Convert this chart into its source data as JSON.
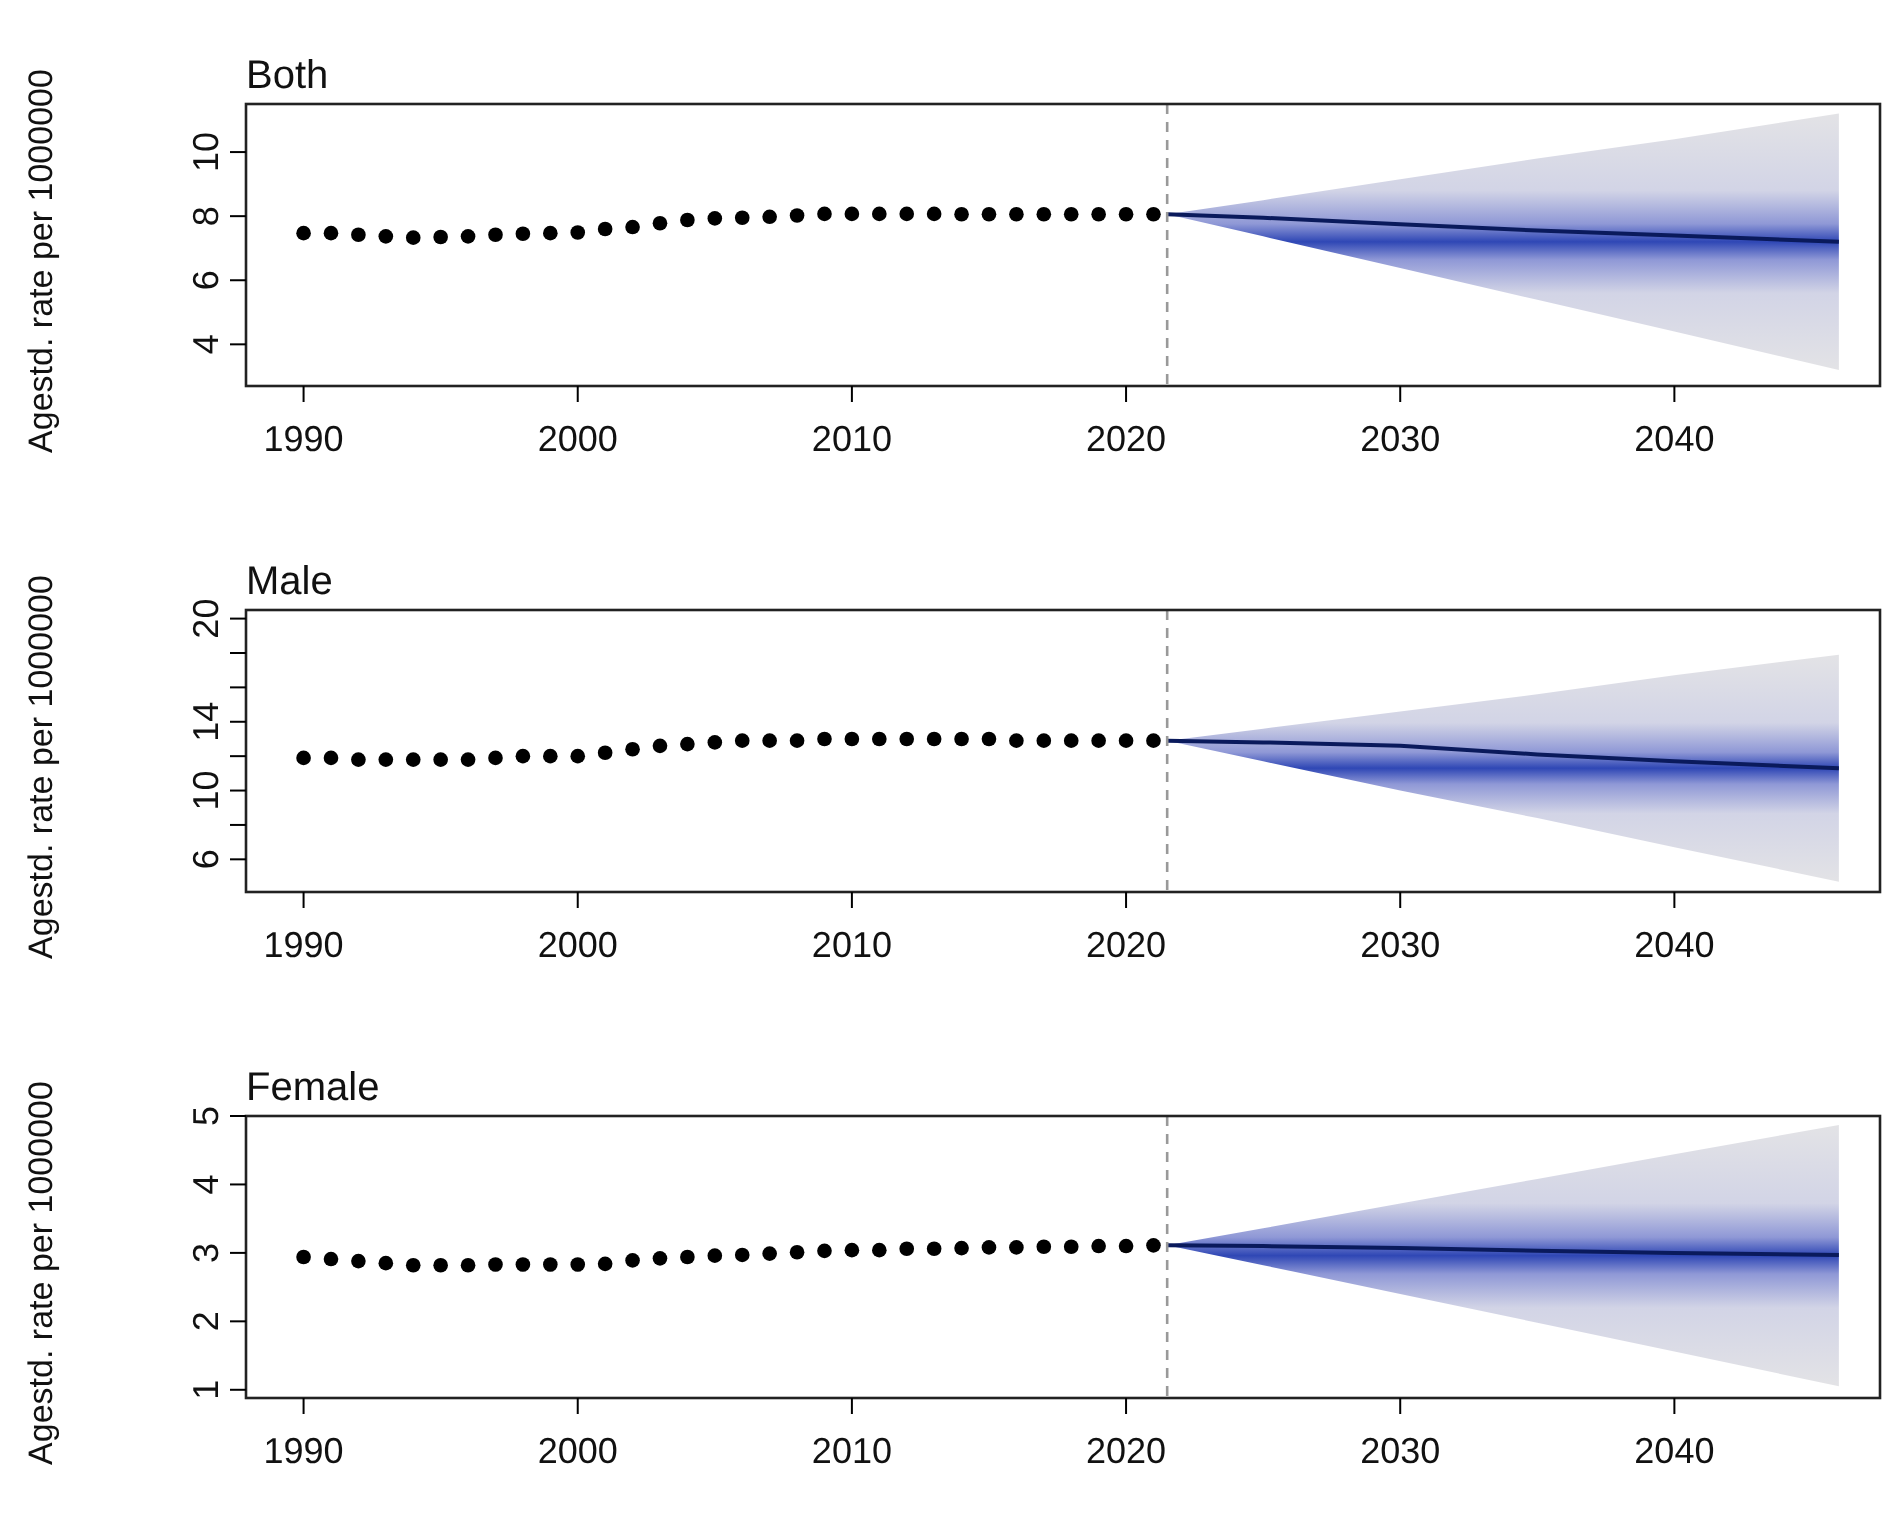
{
  "chart_data": [
    {
      "type": "line",
      "title": "Both",
      "ylabel": "Agestd. rate per 1000000",
      "xlim": [
        1987.9,
        2047.5
      ],
      "xticks": [
        1990,
        2000,
        2010,
        2020,
        2030,
        2040
      ],
      "ylim": [
        2.7,
        11.5
      ],
      "yticks": [
        4,
        6,
        8,
        10
      ],
      "grid": false,
      "ref_lines": [
        {
          "axis": "x",
          "value": 2021.5,
          "color": "#999999",
          "line_style": "dashed"
        }
      ],
      "series": [
        {
          "type": "scatter",
          "marker": "circle",
          "color": "#000000",
          "x": [
            1990,
            1991,
            1992,
            1993,
            1994,
            1995,
            1996,
            1997,
            1998,
            1999,
            2000,
            2001,
            2002,
            2003,
            2004,
            2005,
            2006,
            2007,
            2008,
            2009,
            2010,
            2011,
            2012,
            2013,
            2014,
            2015,
            2016,
            2017,
            2018,
            2019,
            2020,
            2021
          ],
          "values": [
            7.47,
            7.47,
            7.42,
            7.37,
            7.33,
            7.35,
            7.37,
            7.42,
            7.45,
            7.47,
            7.49,
            7.6,
            7.66,
            7.78,
            7.88,
            7.93,
            7.95,
            7.98,
            8.02,
            8.07,
            8.07,
            8.07,
            8.07,
            8.07,
            8.06,
            8.06,
            8.06,
            8.06,
            8.06,
            8.06,
            8.06,
            8.06
          ]
        },
        {
          "type": "line",
          "color": "#0a1a5c",
          "x": [
            2021.5,
            2025,
            2030,
            2035,
            2040,
            2046
          ],
          "values": [
            8.06,
            7.95,
            7.75,
            7.55,
            7.4,
            7.2
          ],
          "lower": [
            8.06,
            7.37,
            6.38,
            5.39,
            4.4,
            3.2
          ],
          "upper": [
            8.06,
            8.5,
            9.15,
            9.8,
            10.4,
            11.2
          ]
        }
      ]
    },
    {
      "type": "line",
      "title": "Male",
      "ylabel": "Agestd. rate per 1000000",
      "xlim": [
        1987.9,
        2047.5
      ],
      "xticks": [
        1990,
        2000,
        2010,
        2020,
        2030,
        2040
      ],
      "ylim": [
        4.1,
        20.5
      ],
      "yticks": [
        6,
        {
          "value": 8,
          "label": null
        },
        10,
        {
          "value": 12,
          "label": null
        },
        14,
        {
          "value": 16,
          "label": null
        },
        {
          "value": 18,
          "label": null
        },
        20
      ],
      "grid": false,
      "ref_lines": [
        {
          "axis": "x",
          "value": 2021.5,
          "color": "#999999",
          "line_style": "dashed"
        }
      ],
      "series": [
        {
          "type": "scatter",
          "marker": "circle",
          "color": "#000000",
          "x": [
            1990,
            1991,
            1992,
            1993,
            1994,
            1995,
            1996,
            1997,
            1998,
            1999,
            2000,
            2001,
            2002,
            2003,
            2004,
            2005,
            2006,
            2007,
            2008,
            2009,
            2010,
            2011,
            2012,
            2013,
            2014,
            2015,
            2016,
            2017,
            2018,
            2019,
            2020,
            2021
          ],
          "values": [
            11.9,
            11.9,
            11.8,
            11.8,
            11.8,
            11.8,
            11.8,
            11.9,
            12.0,
            12.0,
            12.0,
            12.2,
            12.4,
            12.6,
            12.7,
            12.8,
            12.9,
            12.9,
            12.9,
            13.0,
            13.0,
            13.0,
            13.0,
            13.0,
            13.0,
            13.0,
            12.9,
            12.9,
            12.9,
            12.9,
            12.9,
            12.9
          ]
        },
        {
          "type": "line",
          "color": "#0a1a5c",
          "x": [
            2021.5,
            2025,
            2030,
            2035,
            2040,
            2046
          ],
          "values": [
            12.9,
            12.8,
            12.6,
            12.1,
            11.7,
            11.3
          ],
          "lower": [
            12.9,
            11.7,
            10.0,
            8.4,
            6.7,
            4.7
          ],
          "upper": [
            12.9,
            13.6,
            14.6,
            15.6,
            16.7,
            17.9
          ]
        }
      ]
    },
    {
      "type": "line",
      "title": "Female",
      "ylabel": "Agestd. rate per 1000000",
      "xlim": [
        1987.9,
        2047.5
      ],
      "xticks": [
        1990,
        2000,
        2010,
        2020,
        2030,
        2040
      ],
      "ylim": [
        0.88,
        5.0
      ],
      "yticks": [
        1,
        2,
        3,
        4,
        5
      ],
      "grid": false,
      "ref_lines": [
        {
          "axis": "x",
          "value": 2021.5,
          "color": "#999999",
          "line_style": "dashed"
        }
      ],
      "series": [
        {
          "type": "scatter",
          "marker": "circle",
          "color": "#000000",
          "x": [
            1990,
            1991,
            1992,
            1993,
            1994,
            1995,
            1996,
            1997,
            1998,
            1999,
            2000,
            2001,
            2002,
            2003,
            2004,
            2005,
            2006,
            2007,
            2008,
            2009,
            2010,
            2011,
            2012,
            2013,
            2014,
            2015,
            2016,
            2017,
            2018,
            2019,
            2020,
            2021
          ],
          "values": [
            2.94,
            2.91,
            2.88,
            2.85,
            2.82,
            2.82,
            2.82,
            2.83,
            2.83,
            2.83,
            2.83,
            2.84,
            2.89,
            2.92,
            2.94,
            2.96,
            2.97,
            2.99,
            3.01,
            3.03,
            3.04,
            3.04,
            3.06,
            3.06,
            3.07,
            3.08,
            3.08,
            3.09,
            3.09,
            3.1,
            3.1,
            3.11
          ]
        },
        {
          "type": "line",
          "color": "#0a1a5c",
          "x": [
            2021.5,
            2025,
            2030,
            2035,
            2040,
            2046
          ],
          "values": [
            3.11,
            3.1,
            3.07,
            3.03,
            3.0,
            2.97
          ],
          "lower": [
            3.11,
            2.82,
            2.4,
            1.98,
            1.56,
            1.05
          ],
          "upper": [
            3.11,
            3.36,
            3.72,
            4.08,
            4.44,
            4.87
          ]
        }
      ]
    }
  ]
}
